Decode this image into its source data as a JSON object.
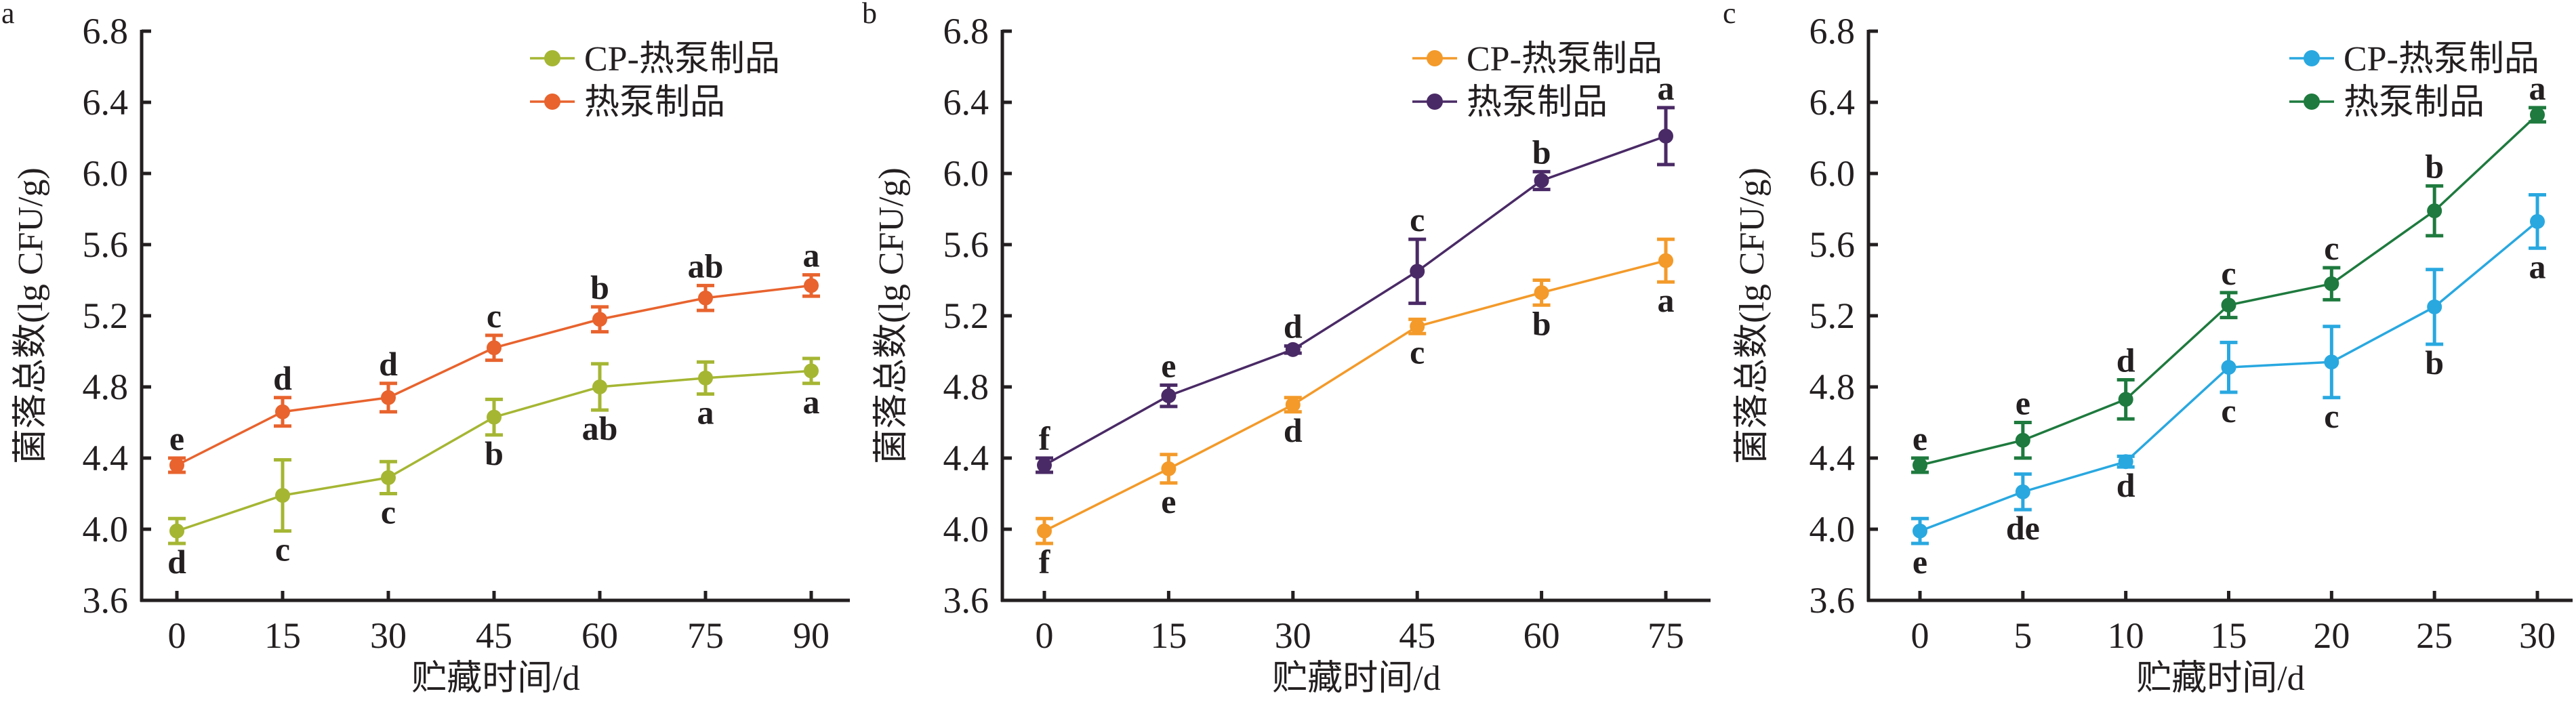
{
  "chart_data": [
    {
      "panel": "a",
      "type": "line",
      "xlabel": "贮藏时间/d",
      "ylabel": "菌落总数(lg CFU/g)",
      "ylim": [
        3.6,
        6.8
      ],
      "yticks": [
        "3.6",
        "4.0",
        "4.4",
        "4.8",
        "5.2",
        "5.6",
        "6.0",
        "6.4",
        "6.8"
      ],
      "x": [
        0,
        15,
        30,
        45,
        60,
        75,
        90
      ],
      "xticks": [
        "0",
        "15",
        "30",
        "45",
        "60",
        "75",
        "90"
      ],
      "legend_position": "top-right",
      "series": [
        {
          "name": "CP-热泵制品",
          "color": "#a5b633",
          "values": [
            3.99,
            4.19,
            4.29,
            4.63,
            4.8,
            4.85,
            4.89
          ],
          "errors": [
            0.07,
            0.2,
            0.09,
            0.1,
            0.13,
            0.09,
            0.07
          ],
          "letters": [
            "d",
            "c",
            "c",
            "b",
            "ab",
            "a",
            "a"
          ],
          "letter_side": "below"
        },
        {
          "name": "热泵制品",
          "color": "#e8632e",
          "values": [
            4.36,
            4.66,
            4.74,
            5.02,
            5.18,
            5.3,
            5.37
          ],
          "errors": [
            0.04,
            0.08,
            0.08,
            0.07,
            0.07,
            0.07,
            0.06
          ],
          "letters": [
            "e",
            "d",
            "d",
            "c",
            "b",
            "ab",
            "a"
          ],
          "letter_side": "above"
        }
      ]
    },
    {
      "panel": "b",
      "type": "line",
      "xlabel": "贮藏时间/d",
      "ylabel": "菌落总数(lg CFU/g)",
      "ylim": [
        3.6,
        6.8
      ],
      "yticks": [
        "3.6",
        "4.0",
        "4.4",
        "4.8",
        "5.2",
        "5.6",
        "6.0",
        "6.4",
        "6.8"
      ],
      "x": [
        0,
        15,
        30,
        45,
        60,
        75
      ],
      "xticks": [
        "0",
        "15",
        "30",
        "45",
        "60",
        "75"
      ],
      "legend_position": "top-right",
      "series": [
        {
          "name": "CP-热泵制品",
          "color": "#f39a2a",
          "values": [
            3.99,
            4.34,
            4.7,
            5.14,
            5.33,
            5.51
          ],
          "errors": [
            0.07,
            0.08,
            0.04,
            0.04,
            0.07,
            0.12
          ],
          "letters": [
            "f",
            "e",
            "d",
            "c",
            "b",
            "a"
          ],
          "letter_side": "below"
        },
        {
          "name": "热泵制品",
          "color": "#4a2a66",
          "values": [
            4.36,
            4.75,
            5.01,
            5.45,
            5.96,
            6.21
          ],
          "errors": [
            0.04,
            0.06,
            0.02,
            0.18,
            0.05,
            0.16
          ],
          "letters": [
            "f",
            "e",
            "d",
            "c",
            "b",
            "a"
          ],
          "letter_side": "above"
        }
      ]
    },
    {
      "panel": "c",
      "type": "line",
      "xlabel": "贮藏时间/d",
      "ylabel": "菌落总数(lg CFU/g)",
      "ylim": [
        3.6,
        6.8
      ],
      "yticks": [
        "3.6",
        "4.0",
        "4.4",
        "4.8",
        "5.2",
        "5.6",
        "6.0",
        "6.4",
        "6.8"
      ],
      "x": [
        0,
        5,
        10,
        15,
        20,
        25,
        30
      ],
      "xticks": [
        "0",
        "5",
        "10",
        "15",
        "20",
        "25",
        "30"
      ],
      "legend_position": "top-right",
      "series": [
        {
          "name": "CP-热泵制品",
          "color": "#29a8e0",
          "values": [
            3.99,
            4.21,
            4.38,
            4.91,
            4.94,
            5.25,
            5.73
          ],
          "errors": [
            0.07,
            0.1,
            0.03,
            0.14,
            0.2,
            0.21,
            0.15
          ],
          "letters": [
            "e",
            "de",
            "d",
            "c",
            "c",
            "b",
            "a"
          ],
          "letter_side": "below"
        },
        {
          "name": "热泵制品",
          "color": "#1e7a3e",
          "values": [
            4.36,
            4.5,
            4.73,
            5.26,
            5.38,
            5.79,
            6.33
          ],
          "errors": [
            0.04,
            0.1,
            0.11,
            0.07,
            0.09,
            0.14,
            0.04
          ],
          "letters": [
            "e",
            "e",
            "d",
            "c",
            "c",
            "b",
            "a"
          ],
          "letter_side": "above"
        }
      ]
    }
  ]
}
